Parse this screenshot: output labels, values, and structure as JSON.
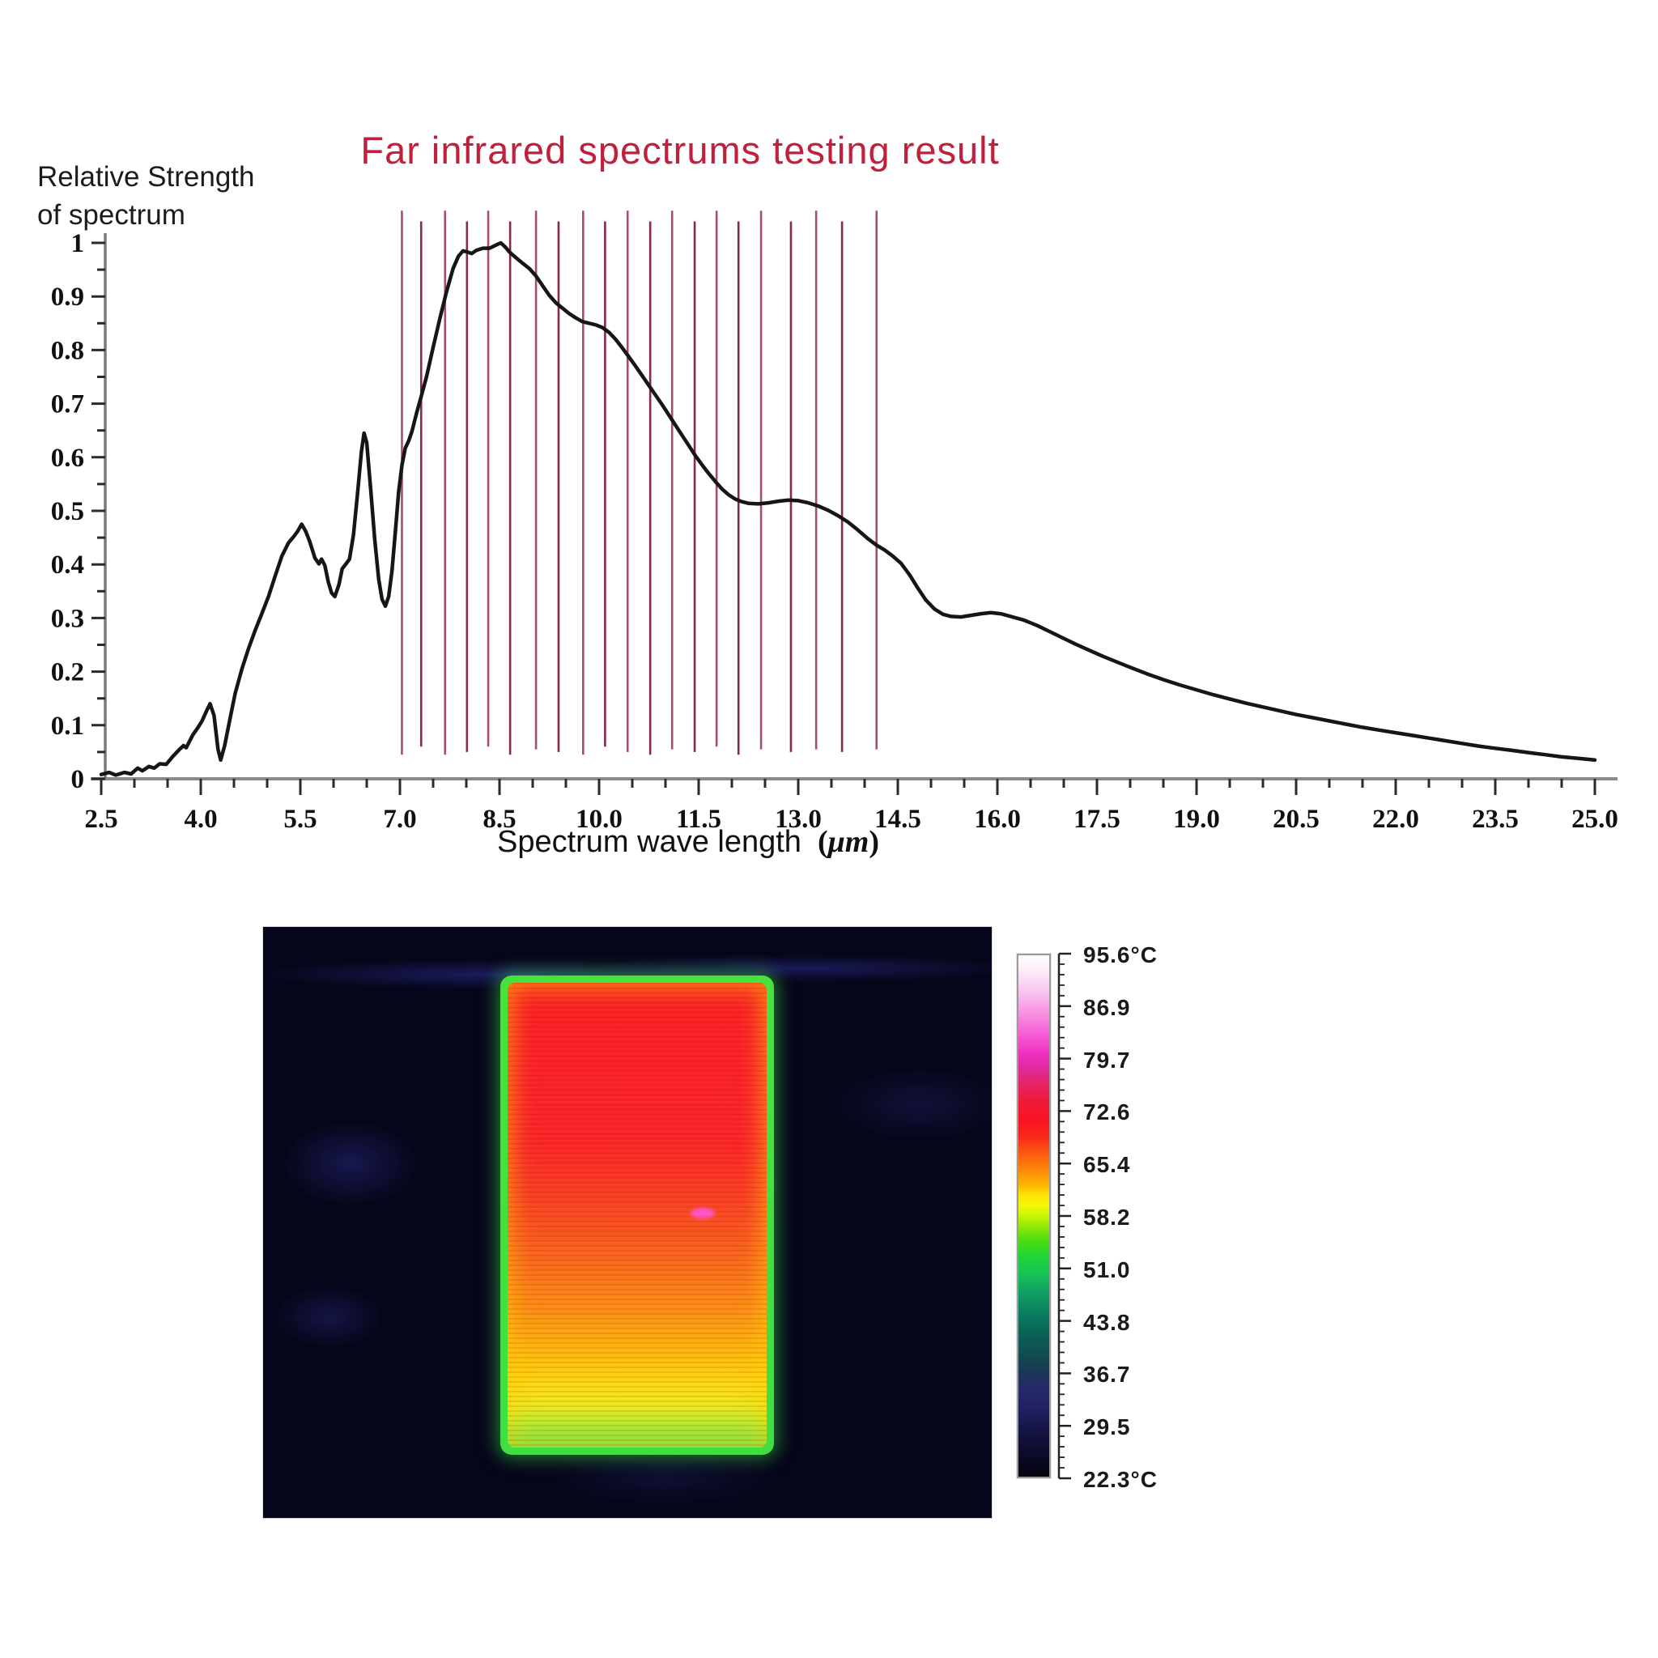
{
  "figure": {
    "title": "Far infrared spectrums testing result",
    "title_color": "#c0203c",
    "y_axis_title_line1": "Relative Strength",
    "y_axis_title_line2": "of spectrum",
    "x_axis_title": "Spectrum wave length",
    "x_axis_unit": "μm"
  },
  "chart_data": {
    "type": "line",
    "title": "Far infrared spectrums testing result",
    "xlabel": "Spectrum wave length (μm)",
    "ylabel": "Relative Strength of spectrum",
    "xlim": [
      2.5,
      25.0
    ],
    "ylim": [
      0,
      1
    ],
    "grid": false,
    "x_major_ticks": [
      2.5,
      4.0,
      5.5,
      7.0,
      8.5,
      10.0,
      11.5,
      13.0,
      14.5,
      16.0,
      17.5,
      19.0,
      20.5,
      22.0,
      23.5,
      25.0
    ],
    "x_major_tick_labels": [
      "2.5",
      "4.0",
      "5.5",
      "7.0",
      "8.5",
      "10.0",
      "11.5",
      "13.0",
      "14.5",
      "16.0",
      "17.5",
      "19.0",
      "20.5",
      "22.0",
      "23.5",
      "25.0"
    ],
    "x_minor_tick_step": 0.5,
    "y_major_ticks": [
      0,
      0.1,
      0.2,
      0.3,
      0.4,
      0.5,
      0.6,
      0.7,
      0.8,
      0.9,
      1
    ],
    "y_major_tick_labels": [
      "0",
      "0.1",
      "0.2",
      "0.3",
      "0.4",
      "0.5",
      "0.6",
      "0.7",
      "0.8",
      "0.9",
      "1"
    ],
    "y_minor_tick_step": 0.05,
    "series": [
      {
        "name": "relative-spectrum-strength",
        "color": "#161616",
        "points": [
          [
            2.5,
            0.008
          ],
          [
            2.62,
            0.012
          ],
          [
            2.72,
            0.007
          ],
          [
            2.85,
            0.012
          ],
          [
            2.95,
            0.009
          ],
          [
            3.05,
            0.02
          ],
          [
            3.12,
            0.015
          ],
          [
            3.22,
            0.023
          ],
          [
            3.3,
            0.02
          ],
          [
            3.38,
            0.028
          ],
          [
            3.48,
            0.027
          ],
          [
            3.58,
            0.042
          ],
          [
            3.68,
            0.055
          ],
          [
            3.74,
            0.062
          ],
          [
            3.78,
            0.058
          ],
          [
            3.88,
            0.082
          ],
          [
            3.96,
            0.096
          ],
          [
            4.02,
            0.108
          ],
          [
            4.08,
            0.125
          ],
          [
            4.14,
            0.14
          ],
          [
            4.2,
            0.118
          ],
          [
            4.26,
            0.055
          ],
          [
            4.3,
            0.035
          ],
          [
            4.36,
            0.062
          ],
          [
            4.44,
            0.112
          ],
          [
            4.52,
            0.16
          ],
          [
            4.62,
            0.205
          ],
          [
            4.72,
            0.243
          ],
          [
            4.82,
            0.277
          ],
          [
            4.92,
            0.308
          ],
          [
            5.02,
            0.34
          ],
          [
            5.12,
            0.378
          ],
          [
            5.22,
            0.415
          ],
          [
            5.32,
            0.44
          ],
          [
            5.4,
            0.452
          ],
          [
            5.46,
            0.462
          ],
          [
            5.52,
            0.475
          ],
          [
            5.58,
            0.462
          ],
          [
            5.64,
            0.443
          ],
          [
            5.72,
            0.412
          ],
          [
            5.78,
            0.401
          ],
          [
            5.82,
            0.41
          ],
          [
            5.87,
            0.398
          ],
          [
            5.92,
            0.368
          ],
          [
            5.97,
            0.347
          ],
          [
            6.02,
            0.34
          ],
          [
            6.08,
            0.362
          ],
          [
            6.13,
            0.392
          ],
          [
            6.18,
            0.4
          ],
          [
            6.24,
            0.41
          ],
          [
            6.3,
            0.455
          ],
          [
            6.36,
            0.53
          ],
          [
            6.42,
            0.61
          ],
          [
            6.46,
            0.645
          ],
          [
            6.5,
            0.627
          ],
          [
            6.56,
            0.54
          ],
          [
            6.62,
            0.448
          ],
          [
            6.68,
            0.372
          ],
          [
            6.73,
            0.335
          ],
          [
            6.78,
            0.322
          ],
          [
            6.83,
            0.34
          ],
          [
            6.88,
            0.388
          ],
          [
            6.93,
            0.46
          ],
          [
            6.98,
            0.535
          ],
          [
            7.03,
            0.585
          ],
          [
            7.08,
            0.617
          ],
          [
            7.13,
            0.63
          ],
          [
            7.18,
            0.648
          ],
          [
            7.25,
            0.682
          ],
          [
            7.32,
            0.713
          ],
          [
            7.4,
            0.75
          ],
          [
            7.5,
            0.805
          ],
          [
            7.6,
            0.858
          ],
          [
            7.7,
            0.908
          ],
          [
            7.8,
            0.952
          ],
          [
            7.88,
            0.975
          ],
          [
            7.95,
            0.985
          ],
          [
            8.02,
            0.983
          ],
          [
            8.08,
            0.98
          ],
          [
            8.15,
            0.986
          ],
          [
            8.25,
            0.99
          ],
          [
            8.35,
            0.99
          ],
          [
            8.45,
            0.996
          ],
          [
            8.52,
            1.0
          ],
          [
            8.58,
            0.993
          ],
          [
            8.65,
            0.983
          ],
          [
            8.75,
            0.972
          ],
          [
            8.85,
            0.962
          ],
          [
            8.95,
            0.952
          ],
          [
            9.05,
            0.938
          ],
          [
            9.15,
            0.92
          ],
          [
            9.25,
            0.902
          ],
          [
            9.35,
            0.888
          ],
          [
            9.45,
            0.878
          ],
          [
            9.55,
            0.868
          ],
          [
            9.65,
            0.86
          ],
          [
            9.75,
            0.853
          ],
          [
            9.85,
            0.85
          ],
          [
            9.95,
            0.847
          ],
          [
            10.05,
            0.842
          ],
          [
            10.15,
            0.833
          ],
          [
            10.25,
            0.82
          ],
          [
            10.35,
            0.804
          ],
          [
            10.45,
            0.787
          ],
          [
            10.55,
            0.77
          ],
          [
            10.65,
            0.752
          ],
          [
            10.75,
            0.734
          ],
          [
            10.85,
            0.716
          ],
          [
            10.95,
            0.698
          ],
          [
            11.05,
            0.679
          ],
          [
            11.15,
            0.66
          ],
          [
            11.25,
            0.641
          ],
          [
            11.35,
            0.622
          ],
          [
            11.45,
            0.603
          ],
          [
            11.55,
            0.586
          ],
          [
            11.65,
            0.57
          ],
          [
            11.75,
            0.555
          ],
          [
            11.85,
            0.541
          ],
          [
            11.95,
            0.53
          ],
          [
            12.05,
            0.522
          ],
          [
            12.15,
            0.517
          ],
          [
            12.25,
            0.514
          ],
          [
            12.4,
            0.513
          ],
          [
            12.55,
            0.515
          ],
          [
            12.7,
            0.518
          ],
          [
            12.85,
            0.52
          ],
          [
            13.0,
            0.519
          ],
          [
            13.15,
            0.515
          ],
          [
            13.3,
            0.509
          ],
          [
            13.45,
            0.501
          ],
          [
            13.6,
            0.491
          ],
          [
            13.75,
            0.479
          ],
          [
            13.9,
            0.464
          ],
          [
            14.05,
            0.448
          ],
          [
            14.18,
            0.436
          ],
          [
            14.3,
            0.427
          ],
          [
            14.42,
            0.416
          ],
          [
            14.55,
            0.402
          ],
          [
            14.68,
            0.38
          ],
          [
            14.8,
            0.356
          ],
          [
            14.92,
            0.334
          ],
          [
            15.05,
            0.317
          ],
          [
            15.18,
            0.307
          ],
          [
            15.3,
            0.303
          ],
          [
            15.45,
            0.302
          ],
          [
            15.6,
            0.305
          ],
          [
            15.75,
            0.308
          ],
          [
            15.9,
            0.31
          ],
          [
            16.05,
            0.308
          ],
          [
            16.2,
            0.303
          ],
          [
            16.4,
            0.296
          ],
          [
            16.6,
            0.286
          ],
          [
            16.8,
            0.274
          ],
          [
            17.0,
            0.262
          ],
          [
            17.2,
            0.25
          ],
          [
            17.4,
            0.239
          ],
          [
            17.6,
            0.228
          ],
          [
            17.8,
            0.218
          ],
          [
            18.0,
            0.208
          ],
          [
            18.25,
            0.196
          ],
          [
            18.5,
            0.185
          ],
          [
            18.75,
            0.175
          ],
          [
            19.0,
            0.166
          ],
          [
            19.25,
            0.157
          ],
          [
            19.5,
            0.149
          ],
          [
            19.75,
            0.141
          ],
          [
            20.0,
            0.134
          ],
          [
            20.25,
            0.127
          ],
          [
            20.5,
            0.12
          ],
          [
            20.75,
            0.114
          ],
          [
            21.0,
            0.108
          ],
          [
            21.25,
            0.102
          ],
          [
            21.5,
            0.096
          ],
          [
            21.75,
            0.091
          ],
          [
            22.0,
            0.086
          ],
          [
            22.25,
            0.081
          ],
          [
            22.5,
            0.076
          ],
          [
            22.75,
            0.071
          ],
          [
            23.0,
            0.066
          ],
          [
            23.25,
            0.061
          ],
          [
            23.5,
            0.057
          ],
          [
            23.75,
            0.053
          ],
          [
            24.0,
            0.049
          ],
          [
            24.25,
            0.045
          ],
          [
            24.5,
            0.041
          ],
          [
            24.75,
            0.038
          ],
          [
            25.0,
            0.035
          ]
        ]
      }
    ],
    "marker_lines": {
      "description": "vertical red lines over the far-infrared band",
      "color_light": "#a84e66",
      "color_dark": "#8a2946",
      "wavelengths": [
        7.03,
        7.32,
        7.68,
        8.01,
        8.33,
        8.66,
        9.05,
        9.39,
        9.76,
        10.09,
        10.43,
        10.77,
        11.1,
        11.44,
        11.77,
        12.1,
        12.44,
        12.89,
        13.27,
        13.66,
        14.18
      ],
      "bottom_values": [
        0.045,
        0.06,
        0.045,
        0.05,
        0.06,
        0.045,
        0.055,
        0.05,
        0.045,
        0.06,
        0.05,
        0.045,
        0.055,
        0.05,
        0.06,
        0.045,
        0.055,
        0.05,
        0.055,
        0.05,
        0.055
      ],
      "top_value_even": 1.06,
      "top_value_odd": 1.04
    }
  },
  "thermal": {
    "scale_labels": [
      "95.6°C",
      "86.9",
      "79.7",
      "72.6",
      "65.4",
      "58.2",
      "51.0",
      "43.8",
      "36.7",
      "29.5",
      "22.3°C"
    ],
    "scale_max": "95.6°C",
    "scale_min": "22.3°C",
    "colorbar_stops": [
      [
        0.0,
        "#ffffff"
      ],
      [
        0.03,
        "#fcecf8"
      ],
      [
        0.07,
        "#f9c4ee"
      ],
      [
        0.11,
        "#f793e2"
      ],
      [
        0.15,
        "#f55fd6"
      ],
      [
        0.19,
        "#ee2fc0"
      ],
      [
        0.22,
        "#e02897"
      ],
      [
        0.25,
        "#e4245f"
      ],
      [
        0.28,
        "#ef1a38"
      ],
      [
        0.32,
        "#f71423"
      ],
      [
        0.35,
        "#f92c17"
      ],
      [
        0.38,
        "#fb5a10"
      ],
      [
        0.41,
        "#fd8708"
      ],
      [
        0.44,
        "#fdb303"
      ],
      [
        0.46,
        "#fde405"
      ],
      [
        0.48,
        "#f4f907"
      ],
      [
        0.5,
        "#c8f306"
      ],
      [
        0.52,
        "#8fe905"
      ],
      [
        0.55,
        "#45dd14"
      ],
      [
        0.58,
        "#1ed437"
      ],
      [
        0.61,
        "#17c556"
      ],
      [
        0.65,
        "#109c64"
      ],
      [
        0.69,
        "#0b7b5e"
      ],
      [
        0.73,
        "#0a5f55"
      ],
      [
        0.77,
        "#114a52"
      ],
      [
        0.8,
        "#1b3655"
      ],
      [
        0.83,
        "#252a6a"
      ],
      [
        0.86,
        "#232268"
      ],
      [
        0.89,
        "#1b1a55"
      ],
      [
        0.92,
        "#131240"
      ],
      [
        0.96,
        "#0b0a28"
      ],
      [
        1.0,
        "#050510"
      ]
    ],
    "panel_stops": [
      [
        0.0,
        "#fa2020"
      ],
      [
        0.1,
        "#fb1d24"
      ],
      [
        0.22,
        "#fb1e28"
      ],
      [
        0.35,
        "#fa2326"
      ],
      [
        0.45,
        "#f93a20"
      ],
      [
        0.55,
        "#f8561c"
      ],
      [
        0.62,
        "#f96f18"
      ],
      [
        0.7,
        "#fa8c12"
      ],
      [
        0.76,
        "#fba70c"
      ],
      [
        0.82,
        "#fcc40a"
      ],
      [
        0.87,
        "#fbdc12"
      ],
      [
        0.91,
        "#e8e81c"
      ],
      [
        0.94,
        "#c2ee2a"
      ],
      [
        0.97,
        "#8fe93c"
      ],
      [
        1.0,
        "#5ee24a"
      ]
    ]
  }
}
